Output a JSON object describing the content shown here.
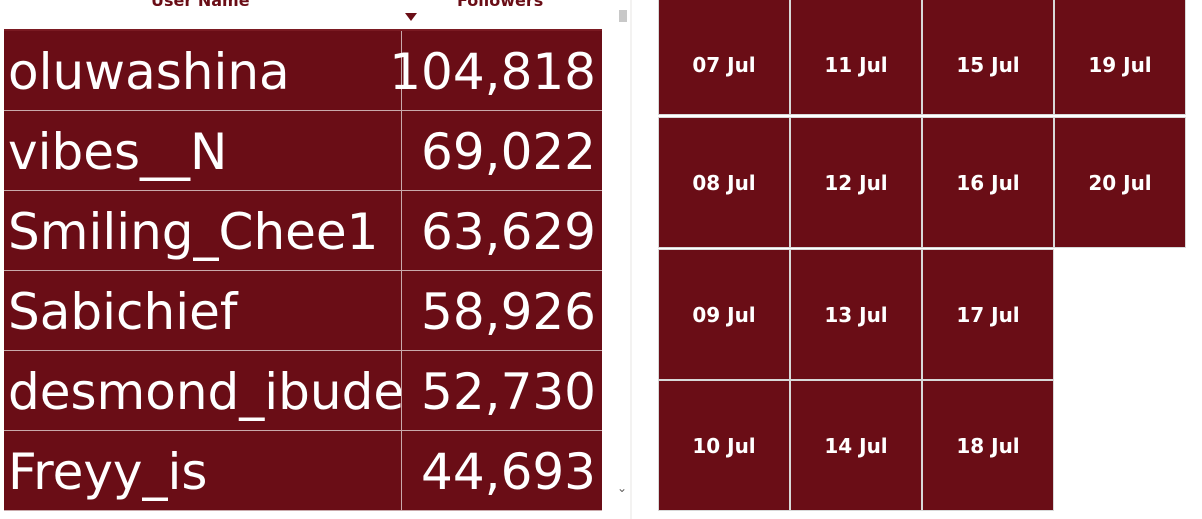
{
  "table": {
    "headers": {
      "user_name": "User Name",
      "followers": "Followers"
    },
    "sort": {
      "column": "Followers",
      "direction": "descending"
    },
    "rows": [
      {
        "user": "oluwashina",
        "followers": "104,818"
      },
      {
        "user": "vibes__N",
        "followers": "69,022"
      },
      {
        "user": "Smiling_Chee1",
        "followers": "63,629"
      },
      {
        "user": "Sabichief",
        "followers": "58,926"
      },
      {
        "user": "desmond_ibude",
        "followers": "52,730"
      },
      {
        "user": "Freyy_is",
        "followers": "44,693"
      }
    ],
    "scroll_down_glyph": "⌄"
  },
  "date_tiles": [
    "07 Jul",
    "11 Jul",
    "15 Jul",
    "19 Jul",
    "08 Jul",
    "12 Jul",
    "16 Jul",
    "20 Jul",
    "09 Jul",
    "13 Jul",
    "17 Jul",
    "10 Jul",
    "14 Jul",
    "18 Jul"
  ],
  "colors": {
    "tile_background": "#6a0d16",
    "text": "#ffffff",
    "header_text": "#6a0d16"
  }
}
